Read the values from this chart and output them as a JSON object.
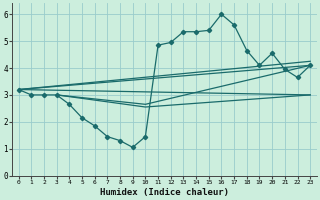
{
  "background_color": "#cceedd",
  "grid_color": "#99cccc",
  "line_color": "#1a6b6b",
  "xlabel": "Humidex (Indice chaleur)",
  "xlim": [
    -0.5,
    23.5
  ],
  "ylim": [
    0,
    6.4
  ],
  "xticks": [
    0,
    1,
    2,
    3,
    4,
    5,
    6,
    7,
    8,
    9,
    10,
    11,
    12,
    13,
    14,
    15,
    16,
    17,
    18,
    19,
    20,
    21,
    22,
    23
  ],
  "yticks": [
    0,
    1,
    2,
    3,
    4,
    5,
    6
  ],
  "series1_x": [
    0,
    1,
    2,
    3,
    4,
    5,
    6,
    7,
    8,
    9,
    10,
    11,
    12,
    13,
    14,
    15,
    16,
    17,
    18,
    19,
    20,
    21,
    22,
    23
  ],
  "series1_y": [
    3.2,
    3.0,
    3.0,
    3.0,
    2.65,
    2.15,
    1.85,
    1.45,
    1.3,
    1.05,
    1.45,
    4.85,
    4.95,
    5.35,
    5.35,
    5.4,
    6.0,
    5.6,
    4.65,
    4.1,
    4.55,
    3.95,
    3.65,
    4.1
  ],
  "line2_x": [
    0,
    23
  ],
  "line2_y": [
    3.2,
    3.0
  ],
  "line3_x": [
    0,
    23
  ],
  "line3_y": [
    3.2,
    4.1
  ],
  "line4_x": [
    0,
    23
  ],
  "line4_y": [
    3.2,
    4.25
  ],
  "line5_x": [
    3,
    10,
    23
  ],
  "line5_y": [
    3.0,
    2.55,
    3.0
  ],
  "line6_x": [
    3,
    10,
    23
  ],
  "line6_y": [
    3.0,
    2.65,
    4.1
  ]
}
